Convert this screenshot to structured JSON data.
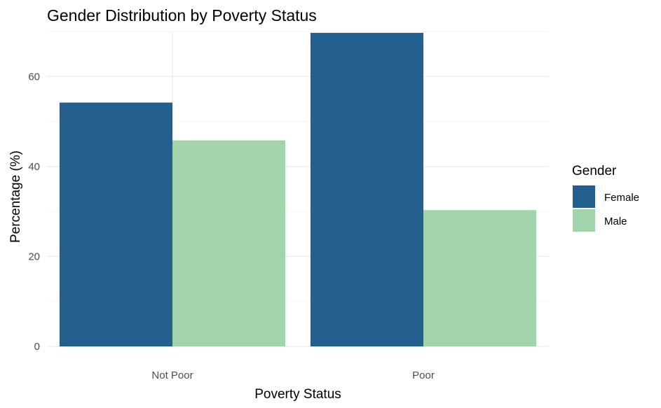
{
  "chart_data": {
    "type": "bar",
    "title": "Gender Distribution by Poverty Status",
    "xlabel": "Poverty Status",
    "ylabel": "Percentage (%)",
    "categories": [
      "Not Poor",
      "Poor"
    ],
    "series": [
      {
        "name": "Female",
        "values": [
          54.2,
          69.7
        ],
        "color": "#23608f"
      },
      {
        "name": "Male",
        "values": [
          45.8,
          30.3
        ],
        "color": "#a2d4ac"
      }
    ],
    "ylim": [
      0,
      70
    ],
    "yticks": [
      "0",
      "20",
      "40",
      "60"
    ],
    "grid": true,
    "legend": {
      "title": "Gender",
      "position": "right"
    }
  }
}
